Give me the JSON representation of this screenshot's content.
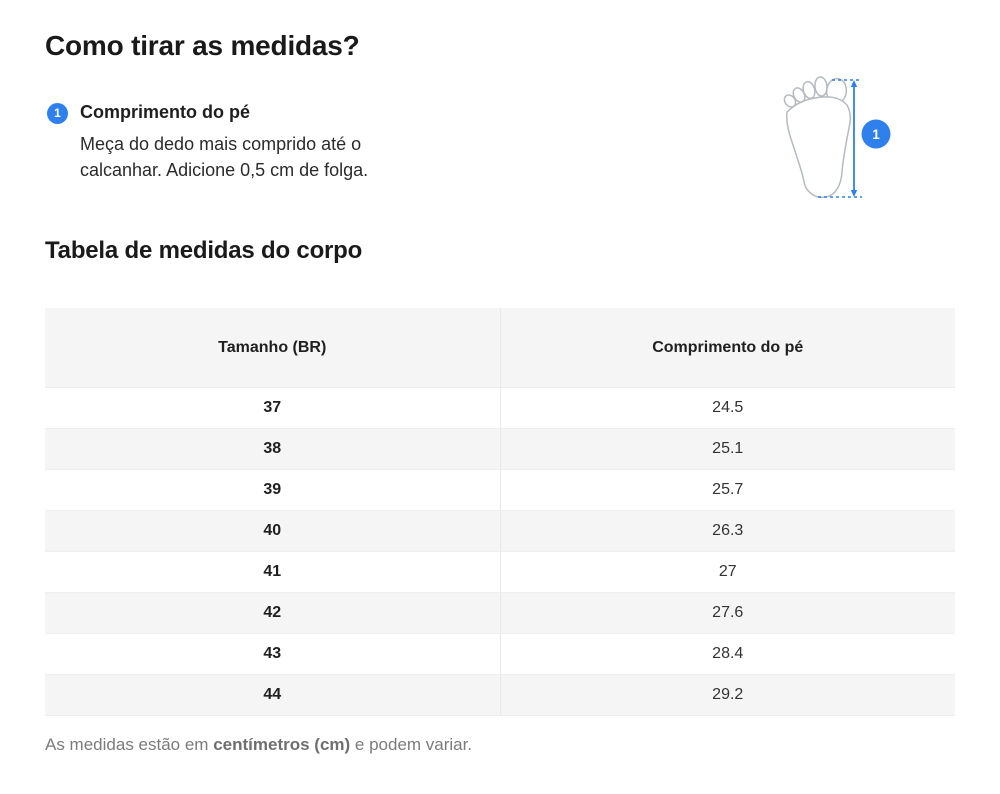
{
  "page": {
    "title": "Como tirar as medidas?",
    "table_title": "Tabela de medidas do corpo"
  },
  "instruction": {
    "number": "1",
    "label": "Comprimento do pé",
    "description": "Meça do dedo mais comprido até o\ncalcanhar. Adicione 0,5 cm de folga."
  },
  "illustration": {
    "badge_number": "1",
    "icon": "foot-outline-with-length-arrow"
  },
  "table": {
    "headers": [
      "Tamanho (BR)",
      "Comprimento do pé"
    ],
    "rows": [
      [
        "37",
        "24.5"
      ],
      [
        "38",
        "25.1"
      ],
      [
        "39",
        "25.7"
      ],
      [
        "40",
        "26.3"
      ],
      [
        "41",
        "27"
      ],
      [
        "42",
        "27.6"
      ],
      [
        "43",
        "28.4"
      ],
      [
        "44",
        "29.2"
      ]
    ]
  },
  "footnote": {
    "prefix": "As medidas estão em ",
    "bold": "centímetros (cm)",
    "suffix": " e podem variar."
  },
  "colors": {
    "accent_blue": "#2f80ed",
    "table_header_bg": "#f5f5f5",
    "table_alt_row_bg": "#f5f5f5",
    "foot_outline_gray": "#b4bbc1",
    "footnote_gray": "#7b7b7b"
  }
}
